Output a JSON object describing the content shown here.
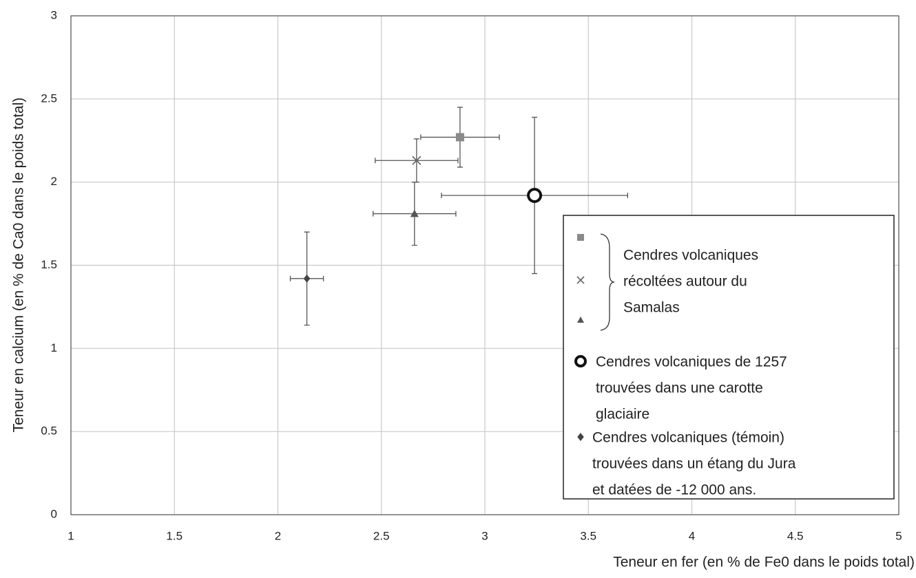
{
  "chart_data": {
    "type": "scatter",
    "x_label": "Teneur en fer (en % de Fe0 dans le poids total)",
    "y_label": "Teneur en calcium (en % de Ca0 dans le poids total)",
    "xlim": [
      1,
      5
    ],
    "xticks": [
      1,
      1.5,
      2,
      2.5,
      3,
      3.5,
      4,
      4.5,
      5
    ],
    "ylim": [
      0,
      3
    ],
    "yticks": [
      0,
      0.5,
      1,
      1.5,
      2,
      2.5,
      3
    ],
    "grid": true,
    "legend_group": [
      "Cendres volcaniques",
      "récoltées autour du",
      "Samalas"
    ],
    "series": [
      {
        "marker": "square",
        "color": "#8a8a8a",
        "x": [
          2.88
        ],
        "values": [
          2.27
        ],
        "x_errors": [
          0.19
        ],
        "y_errors": [
          0.18
        ]
      },
      {
        "marker": "x",
        "color": "#666666",
        "x": [
          2.67
        ],
        "values": [
          2.13
        ],
        "x_errors": [
          0.2
        ],
        "y_errors": [
          0.13
        ]
      },
      {
        "marker": "triangle",
        "color": "#555555",
        "x": [
          2.66
        ],
        "values": [
          1.81
        ],
        "x_errors": [
          0.2
        ],
        "y_errors": [
          0.19
        ]
      },
      {
        "marker": "circle",
        "color": "#111111",
        "x": [
          3.24
        ],
        "values": [
          1.92
        ],
        "x_errors": [
          0.45
        ],
        "y_errors": [
          0.47
        ],
        "legend_lines": [
          "Cendres volcaniques de 1257",
          "trouvées dans une carotte",
          "glaciaire"
        ]
      },
      {
        "marker": "diamond",
        "color": "#444444",
        "x": [
          2.14
        ],
        "values": [
          1.42
        ],
        "x_errors": [
          0.08
        ],
        "y_errors": [
          0.28
        ],
        "legend_lines": [
          "Cendres volcaniques (témoin)",
          "trouvées dans un étang du Jura",
          "et datées de -12 000 ans."
        ]
      }
    ]
  }
}
